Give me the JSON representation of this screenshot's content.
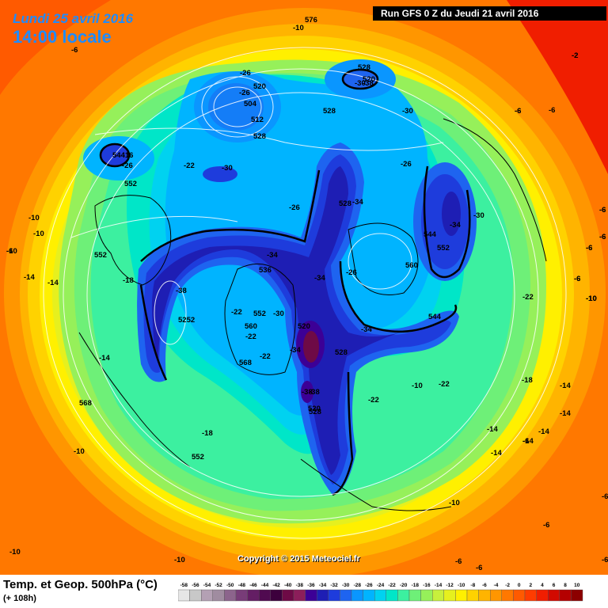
{
  "header": {
    "date": "Lundi 25 avril 2016",
    "time": "14:00 locale",
    "run": "Run GFS 0 Z du Jeudi 21 avril 2016"
  },
  "copyright": "Copyright © 2015 Meteociel.fr",
  "footer": {
    "title": "Temp. et Geop. 500hPa (°C)",
    "subtitle": "(+ 108h)"
  },
  "legend": [
    {
      "label": "-58",
      "color": "#e6e6e6"
    },
    {
      "label": "-56",
      "color": "#c8c8c8"
    },
    {
      "label": "-54",
      "color": "#b4a0b4"
    },
    {
      "label": "-52",
      "color": "#a08ca0"
    },
    {
      "label": "-50",
      "color": "#8c648c"
    },
    {
      "label": "-48",
      "color": "#783c78"
    },
    {
      "label": "-46",
      "color": "#641e64"
    },
    {
      "label": "-44",
      "color": "#500a50"
    },
    {
      "label": "-42",
      "color": "#3c003c"
    },
    {
      "label": "-40",
      "color": "#6e0a46"
    },
    {
      "label": "-38",
      "color": "#8c1e5a"
    },
    {
      "label": "-36",
      "color": "#3c0096"
    },
    {
      "label": "-34",
      "color": "#1e1eb4"
    },
    {
      "label": "-32",
      "color": "#1e3cdc"
    },
    {
      "label": "-30",
      "color": "#1e64f0"
    },
    {
      "label": "-28",
      "color": "#0a96ff"
    },
    {
      "label": "-26",
      "color": "#00b4ff"
    },
    {
      "label": "-24",
      "color": "#00d2f0"
    },
    {
      "label": "-22",
      "color": "#00e6c8"
    },
    {
      "label": "-20",
      "color": "#3cf0a0"
    },
    {
      "label": "-18",
      "color": "#6ef078"
    },
    {
      "label": "-16",
      "color": "#96f05a"
    },
    {
      "label": "-14",
      "color": "#c8f03c"
    },
    {
      "label": "-12",
      "color": "#e6f01e"
    },
    {
      "label": "-10",
      "color": "#fff000"
    },
    {
      "label": "-8",
      "color": "#ffd200"
    },
    {
      "label": "-6",
      "color": "#ffb400"
    },
    {
      "label": "-4",
      "color": "#ff9600"
    },
    {
      "label": "-2",
      "color": "#ff7800"
    },
    {
      "label": "0",
      "color": "#ff5a00"
    },
    {
      "label": "2",
      "color": "#ff3c00"
    },
    {
      "label": "4",
      "color": "#f01e00"
    },
    {
      "label": "6",
      "color": "#d20a00"
    },
    {
      "label": "8",
      "color": "#b40000"
    },
    {
      "label": "10",
      "color": "#8c0000"
    }
  ],
  "map_labels": [
    "576",
    "-10",
    "-6",
    "-2",
    "-6",
    "528",
    "520",
    "-30",
    "-26",
    "520",
    "-26",
    "504",
    "512",
    "528",
    "-38",
    "-30",
    "528",
    "54416",
    "-26",
    "-22",
    "-30",
    "552",
    "-26",
    "-6",
    "-10",
    "-10",
    "528",
    "-34",
    "-26",
    "-30",
    "-34",
    "-6",
    "544",
    "552",
    "-10",
    "552",
    "-34",
    "-6",
    "-14",
    "-18",
    "536",
    "-34",
    "-26",
    "560",
    "-6",
    "-10",
    "-14",
    "-38",
    "-22",
    "-10",
    "5252",
    "552",
    "-30",
    "544",
    "560",
    "-22",
    "520",
    "-10",
    "528",
    "-14",
    "-38",
    "-34",
    "-34",
    "-22",
    "-22",
    "568",
    "-22",
    "528",
    "-18",
    "-14",
    "-38",
    "-22",
    "568",
    "520",
    "-14",
    "-14",
    "-14",
    "-18",
    "-14",
    "-14",
    "552",
    "-10",
    "-10",
    "-6",
    "-10",
    "-6",
    "-6",
    "-6",
    "-6",
    "-10",
    "-6",
    "-2",
    "-6",
    "-6",
    "-6",
    "-6",
    "-10",
    "-6",
    "-6",
    "-6"
  ]
}
